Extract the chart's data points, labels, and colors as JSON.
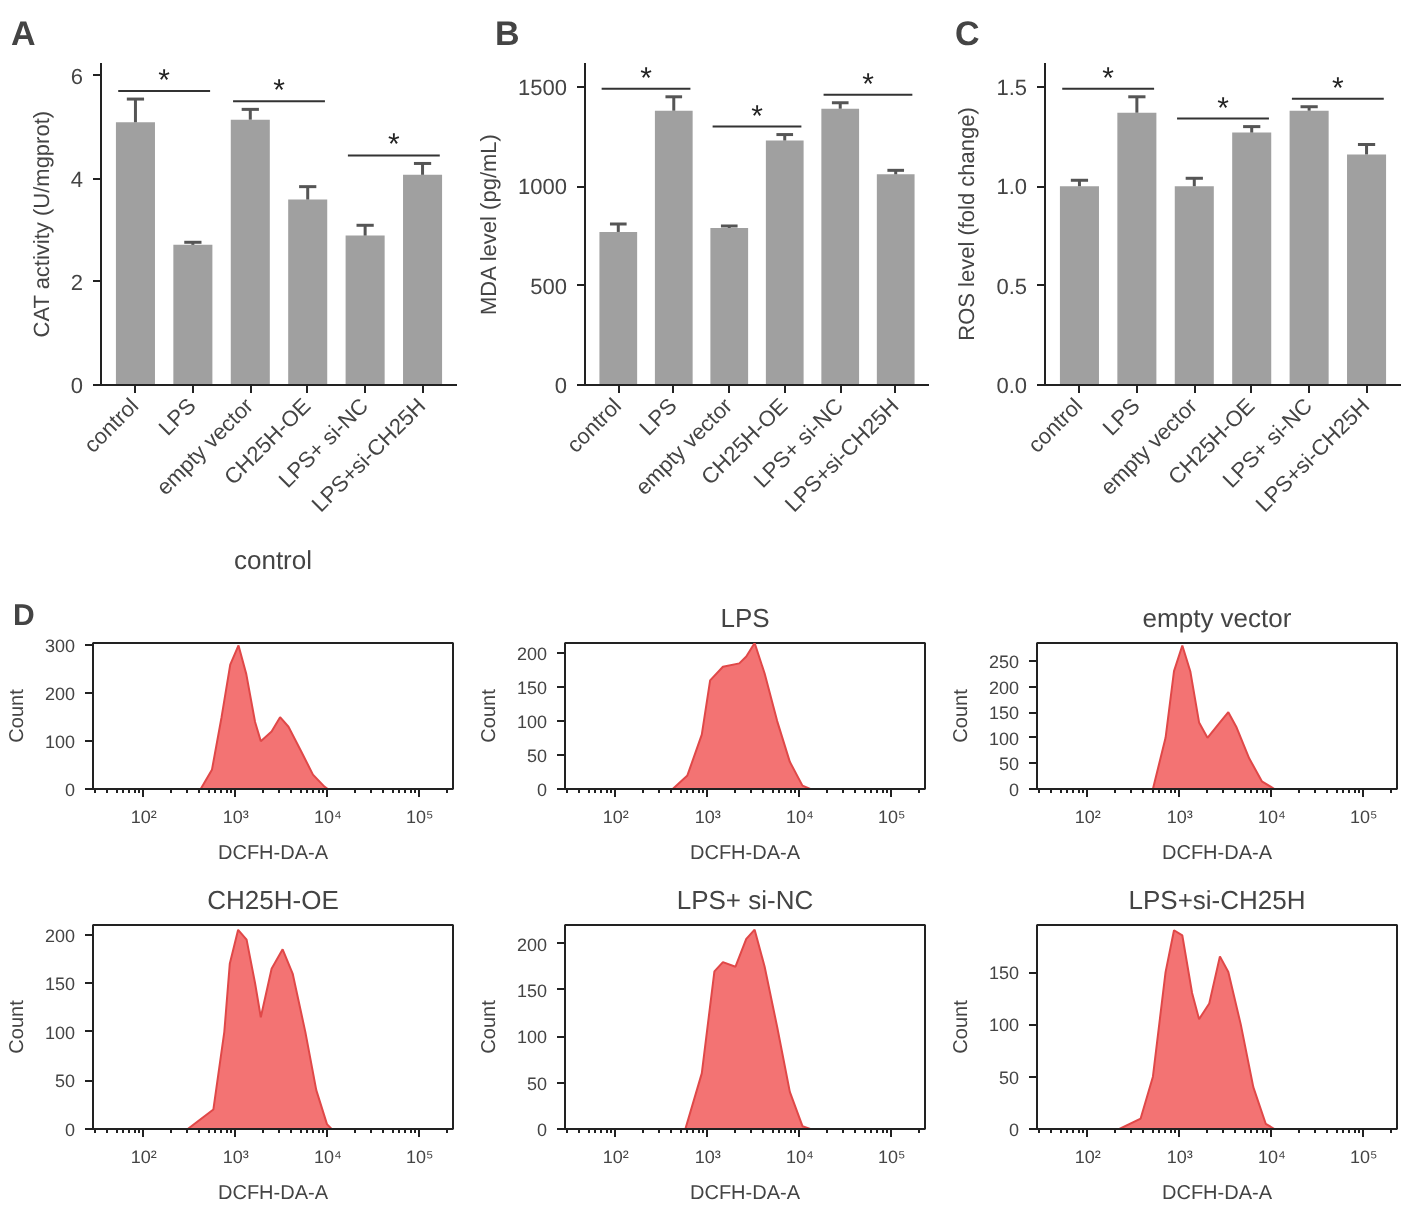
{
  "chart_data": [
    {
      "type": "bar",
      "title": "A",
      "ylabel": "CAT activity (U/mgprot)",
      "categories": [
        "control",
        "LPS",
        "empty vector",
        "CH25H-OE",
        "LPS+ si-NC",
        "LPS+si-CH25H"
      ],
      "color": "#a0a0a0",
      "values": [
        5.1,
        2.72,
        5.15,
        3.6,
        2.9,
        4.08
      ],
      "errors": [
        [
          5.1,
          5.55
        ],
        [
          2.72,
          2.77
        ],
        [
          5.15,
          5.35
        ],
        [
          3.6,
          3.85
        ],
        [
          2.9,
          3.1
        ],
        [
          4.08,
          4.3
        ]
      ],
      "ylim": [
        0,
        6.25
      ],
      "yticks": [
        0,
        2,
        4,
        6
      ],
      "annotations": [
        "*",
        "*",
        "*"
      ]
    },
    {
      "type": "bar",
      "title": "B",
      "ylabel": "MDA level (pg/mL)",
      "categories": [
        "control",
        "LPS",
        "empty vector",
        "CH25H-OE",
        "LPS+ si-NC",
        "LPS+si-CH25H"
      ],
      "color": "#a0a0a0",
      "values": [
        770,
        1380,
        790,
        1230,
        1390,
        1060
      ],
      "errors": [
        [
          770,
          810
        ],
        [
          1380,
          1450
        ],
        [
          790,
          800
        ],
        [
          1230,
          1260
        ],
        [
          1390,
          1420
        ],
        [
          1060,
          1080
        ]
      ],
      "ylim": [
        0,
        1620
      ],
      "yticks": [
        0,
        500,
        1000,
        1500
      ],
      "annotations": [
        "*",
        "*",
        "*"
      ]
    },
    {
      "type": "bar",
      "title": "C",
      "ylabel": "ROS level (fold change)",
      "categories": [
        "control",
        "LPS",
        "empty vector",
        "CH25H-OE",
        "LPS+ si-NC",
        "LPS+si-CH25H"
      ],
      "color": "#a0a0a0",
      "values": [
        1.0,
        1.37,
        1.0,
        1.27,
        1.38,
        1.16
      ],
      "errors": [
        [
          1.0,
          1.03
        ],
        [
          1.37,
          1.45
        ],
        [
          1.0,
          1.04
        ],
        [
          1.27,
          1.3
        ],
        [
          1.38,
          1.4
        ],
        [
          1.16,
          1.21
        ]
      ],
      "ylim": [
        0,
        1.62
      ],
      "yticks": [
        {
          "value": 0,
          "label": "0.0"
        },
        {
          "value": 0.5,
          "label": "0.5"
        },
        {
          "value": 1,
          "label": "1.0"
        },
        {
          "value": 1.5,
          "label": "1.5"
        }
      ],
      "annotations": [
        "*",
        "*",
        "*"
      ]
    },
    {
      "type": "area",
      "title": "control",
      "xlabel": "DCFH-DA-A",
      "ylabel": "Count",
      "log": "x",
      "color": "#f26b6b",
      "annotations": [
        "D"
      ],
      "x": [
        415,
        550,
        700,
        870,
        1070,
        1300,
        1620,
        1870,
        2450,
        3030,
        3740,
        5100,
        6900,
        9200,
        10000
      ],
      "values": [
        0,
        40,
        150,
        260,
        300,
        240,
        140,
        100,
        120,
        150,
        130,
        80,
        30,
        5,
        0
      ],
      "xlim": [
        28,
        230000
      ],
      "xticks": [
        {
          "value": 100,
          "label": "10²"
        },
        {
          "value": 1000,
          "label": "10³"
        },
        {
          "value": 10000,
          "label": "10⁴"
        },
        {
          "value": 100000,
          "label": "10⁵"
        }
      ],
      "ylim": [
        0,
        305
      ],
      "yticks": [
        0,
        100,
        200,
        300
      ]
    },
    {
      "type": "area",
      "title": "LPS",
      "xlabel": "DCFH-DA-A",
      "ylabel": "Count",
      "log": "x",
      "color": "#f26b6b",
      "x": [
        415,
        600,
        860,
        1060,
        1460,
        2200,
        2620,
        3230,
        4150,
        5680,
        7800,
        10700,
        13000
      ],
      "values": [
        0,
        20,
        80,
        160,
        180,
        185,
        195,
        215,
        170,
        100,
        40,
        5,
        0
      ],
      "xlim": [
        28,
        230000
      ],
      "xticks": [
        {
          "value": 100,
          "label": "10²"
        },
        {
          "value": 1000,
          "label": "10³"
        },
        {
          "value": 10000,
          "label": "10⁴"
        },
        {
          "value": 100000,
          "label": "10⁵"
        }
      ],
      "ylim": [
        0,
        215
      ],
      "yticks": [
        0,
        50,
        100,
        150,
        200
      ]
    },
    {
      "type": "area",
      "title": "empty vector",
      "xlabel": "DCFH-DA-A",
      "ylabel": "Count",
      "log": "x",
      "color": "#f26b6b",
      "x": [
        510,
        700,
        865,
        1065,
        1300,
        1620,
        2000,
        2730,
        3370,
        4150,
        5680,
        7800,
        10700
      ],
      "values": [
        0,
        100,
        230,
        280,
        230,
        130,
        100,
        130,
        150,
        120,
        60,
        15,
        0
      ],
      "xlim": [
        28,
        230000
      ],
      "xticks": [
        {
          "value": 100,
          "label": "10²"
        },
        {
          "value": 1000,
          "label": "10³"
        },
        {
          "value": 10000,
          "label": "10⁴"
        },
        {
          "value": 100000,
          "label": "10⁵"
        }
      ],
      "ylim": [
        0,
        285
      ],
      "yticks": [
        0,
        50,
        100,
        150,
        200,
        250
      ]
    },
    {
      "type": "area",
      "title": "CH25H-OE",
      "xlabel": "DCFH-DA-A",
      "ylabel": "Count",
      "log": "x",
      "color": "#f26b6b",
      "x": [
        300,
        570,
        750,
        860,
        1060,
        1310,
        1620,
        1870,
        2450,
        3230,
        4150,
        5700,
        7500,
        9800,
        11000
      ],
      "values": [
        0,
        20,
        100,
        170,
        205,
        195,
        150,
        115,
        165,
        185,
        160,
        100,
        40,
        5,
        0
      ],
      "xlim": [
        28,
        230000
      ],
      "xticks": [
        {
          "value": 100,
          "label": "10²"
        },
        {
          "value": 1000,
          "label": "10³"
        },
        {
          "value": 10000,
          "label": "10⁴"
        },
        {
          "value": 100000,
          "label": "10⁵"
        }
      ],
      "ylim": [
        0,
        210
      ],
      "yticks": [
        0,
        50,
        100,
        150,
        200
      ]
    },
    {
      "type": "area",
      "title": "LPS+ si-NC",
      "xlabel": "DCFH-DA-A",
      "ylabel": "Count",
      "log": "x",
      "color": "#f26b6b",
      "x": [
        570,
        860,
        1180,
        1460,
        2000,
        2620,
        3230,
        4150,
        5680,
        7800,
        10700,
        13000
      ],
      "values": [
        0,
        60,
        170,
        180,
        175,
        205,
        215,
        175,
        110,
        40,
        3,
        0
      ],
      "xlim": [
        28,
        230000
      ],
      "xticks": [
        {
          "value": 100,
          "label": "10²"
        },
        {
          "value": 1000,
          "label": "10³"
        },
        {
          "value": 10000,
          "label": "10⁴"
        },
        {
          "value": 100000,
          "label": "10⁵"
        }
      ],
      "ylim": [
        0,
        220
      ],
      "yticks": [
        0,
        50,
        100,
        150,
        200
      ]
    },
    {
      "type": "area",
      "title": "LPS+si-CH25H",
      "xlabel": "DCFH-DA-A",
      "ylabel": "Count",
      "log": "x",
      "color": "#f26b6b",
      "x": [
        220,
        375,
        510,
        700,
        865,
        1065,
        1360,
        1620,
        2090,
        2730,
        3370,
        4600,
        6300,
        8600,
        10700
      ],
      "values": [
        0,
        10,
        50,
        150,
        190,
        185,
        130,
        105,
        120,
        165,
        150,
        100,
        40,
        5,
        0
      ],
      "xlim": [
        28,
        230000
      ],
      "xticks": [
        {
          "value": 100,
          "label": "10²"
        },
        {
          "value": 1000,
          "label": "10³"
        },
        {
          "value": 10000,
          "label": "10⁴"
        },
        {
          "value": 100000,
          "label": "10⁵"
        }
      ],
      "ylim": [
        0,
        195
      ],
      "yticks": [
        0,
        50,
        100,
        150
      ]
    }
  ]
}
